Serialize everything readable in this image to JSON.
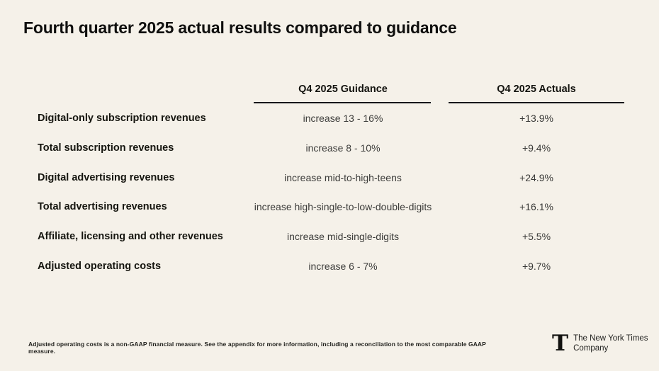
{
  "slide": {
    "title": "Fourth quarter 2025 actual results compared to guidance"
  },
  "table": {
    "headers": {
      "guidance": "Q4 2025 Guidance",
      "actuals": "Q4 2025 Actuals"
    },
    "rows": [
      {
        "label": "Digital-only subscription revenues",
        "guidance": "increase 13 - 16%",
        "actual": "+13.9%"
      },
      {
        "label": "Total subscription revenues",
        "guidance": "increase 8 - 10%",
        "actual": "+9.4%"
      },
      {
        "label": "Digital advertising revenues",
        "guidance": "increase mid-to-high-teens",
        "actual": "+24.9%"
      },
      {
        "label": "Total advertising revenues",
        "guidance": "increase high-single-to-low-double-digits",
        "actual": "+16.1%"
      },
      {
        "label": "Affiliate, licensing and other revenues",
        "guidance": "increase mid-single-digits",
        "actual": "+5.5%"
      },
      {
        "label": "Adjusted operating costs",
        "guidance": "increase 6 - 7%",
        "actual": "+9.7%"
      }
    ]
  },
  "footnote": "Adjusted operating costs is a non-GAAP financial measure. See the appendix for more information, including a reconciliation to the most comparable GAAP measure.",
  "logo": {
    "glyph": "T",
    "name_line1": "The New York Times",
    "name_line2": "Company"
  },
  "colors": {
    "background": "#f5f1e9",
    "heading_text": "#0f0f0e",
    "label_text": "#15150f",
    "value_text": "#3c3c3a",
    "rule": "#17171a"
  }
}
